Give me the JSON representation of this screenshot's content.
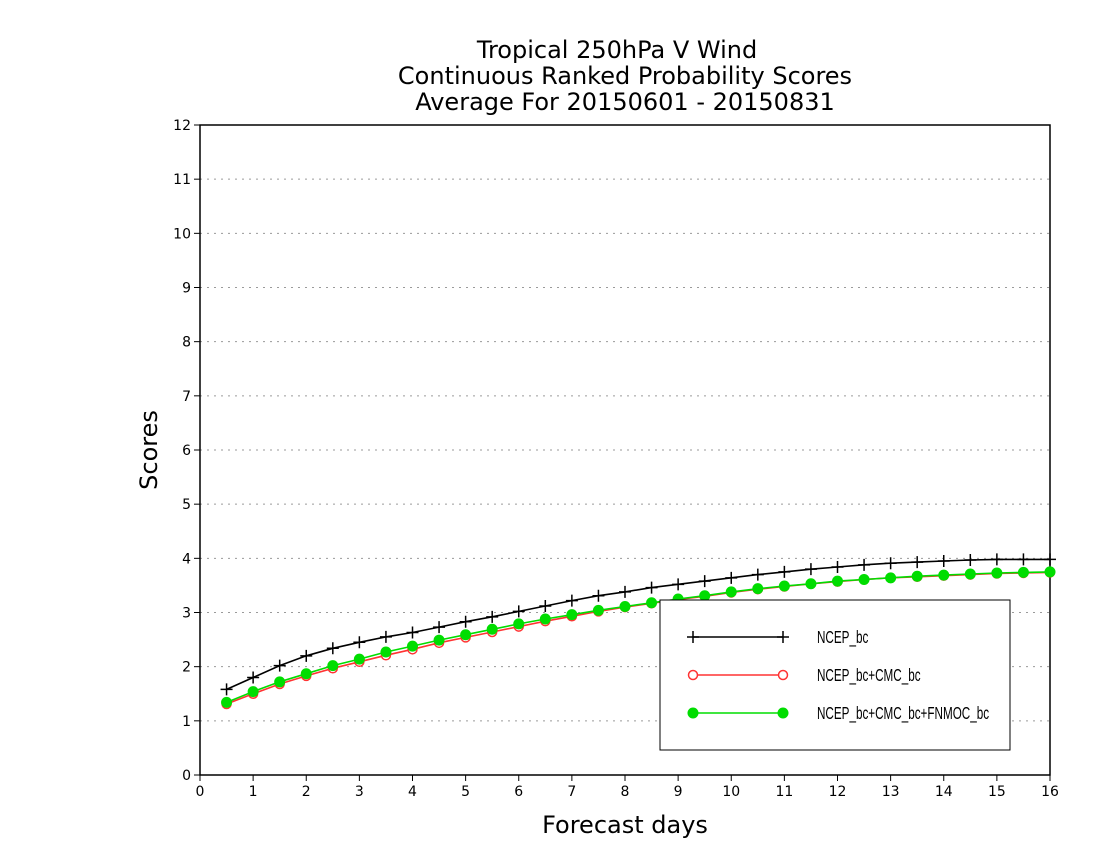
{
  "chart_data": {
    "type": "line",
    "title": [
      "Tropical 250hPa V Wind",
      "Continuous Ranked Probability Scores",
      "Average For 20150601 - 20150831"
    ],
    "xlabel": "Forecast days",
    "ylabel": "Scores",
    "xlim": [
      0,
      16
    ],
    "ylim": [
      0,
      12
    ],
    "xticks": [
      "0",
      "1",
      "2",
      "3",
      "4",
      "5",
      "6",
      "7",
      "8",
      "9",
      "10",
      "11",
      "12",
      "13",
      "14",
      "15",
      "16"
    ],
    "yticks": [
      "0",
      "1",
      "2",
      "3",
      "4",
      "5",
      "6",
      "7",
      "8",
      "9",
      "10",
      "11",
      "12"
    ],
    "grid": "horizontal dotted",
    "legend_position": "bottom-right",
    "x": [
      0.5,
      1,
      1.5,
      2,
      2.5,
      3,
      3.5,
      4,
      4.5,
      5,
      5.5,
      6,
      6.5,
      7,
      7.5,
      8,
      8.5,
      9,
      9.5,
      10,
      10.5,
      11,
      11.5,
      12,
      12.5,
      13,
      13.5,
      14,
      14.5,
      15,
      15.5,
      16
    ],
    "series": [
      {
        "name": "NCEP_bc",
        "color": "#000000",
        "marker": "plus",
        "values": [
          1.58,
          1.8,
          2.02,
          2.2,
          2.34,
          2.45,
          2.55,
          2.63,
          2.73,
          2.83,
          2.92,
          3.02,
          3.12,
          3.22,
          3.31,
          3.38,
          3.46,
          3.52,
          3.58,
          3.64,
          3.7,
          3.75,
          3.8,
          3.84,
          3.88,
          3.91,
          3.93,
          3.95,
          3.97,
          3.98,
          3.98,
          3.98
        ]
      },
      {
        "name": "NCEP_bc+CMC_bc",
        "color": "#ff3333",
        "marker": "open-circle",
        "values": [
          1.31,
          1.5,
          1.68,
          1.83,
          1.97,
          2.09,
          2.21,
          2.32,
          2.44,
          2.54,
          2.64,
          2.74,
          2.84,
          2.93,
          3.02,
          3.1,
          3.17,
          3.24,
          3.3,
          3.37,
          3.43,
          3.48,
          3.53,
          3.57,
          3.61,
          3.64,
          3.66,
          3.68,
          3.7,
          3.72,
          3.73,
          3.74
        ]
      },
      {
        "name": "NCEP_bc+CMC_bc+FNMOC_bc",
        "color": "#00dd00",
        "marker": "filled-circle",
        "values": [
          1.34,
          1.54,
          1.72,
          1.87,
          2.02,
          2.14,
          2.27,
          2.38,
          2.49,
          2.59,
          2.69,
          2.79,
          2.88,
          2.96,
          3.04,
          3.11,
          3.18,
          3.25,
          3.31,
          3.38,
          3.44,
          3.49,
          3.53,
          3.58,
          3.61,
          3.64,
          3.67,
          3.69,
          3.71,
          3.73,
          3.74,
          3.75
        ]
      }
    ]
  }
}
